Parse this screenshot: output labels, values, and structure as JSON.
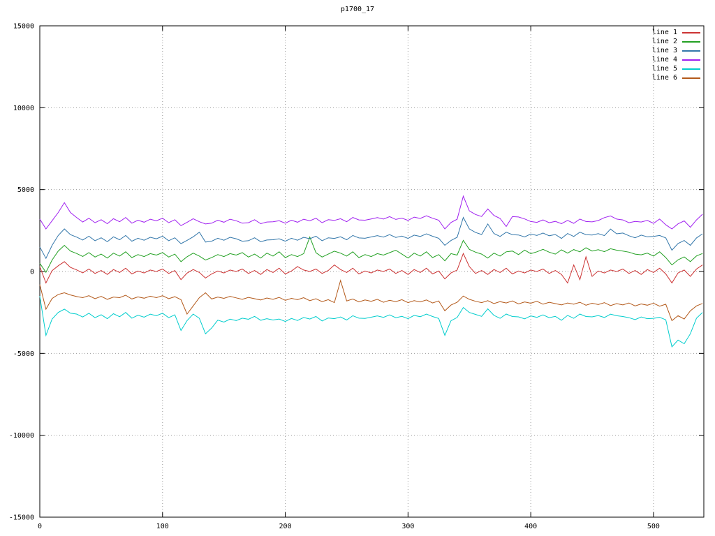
{
  "title": "p1700_17",
  "chart_data": {
    "type": "line",
    "title": "p1700_17",
    "xlabel": "",
    "ylabel": "",
    "xlim": [
      0,
      541
    ],
    "ylim": [
      -15000,
      15000
    ],
    "x_ticks": [
      0,
      100,
      200,
      300,
      400,
      500
    ],
    "y_ticks": [
      -15000,
      -10000,
      -5000,
      0,
      5000,
      10000,
      15000
    ],
    "grid": true,
    "legend_position": "top-right",
    "x_start": 0,
    "x_step": 5,
    "series": [
      {
        "name": "line 1",
        "color": "#cc3333",
        "values": [
          300,
          -700,
          50,
          350,
          600,
          250,
          100,
          -80,
          150,
          -120,
          60,
          -180,
          120,
          -60,
          200,
          -150,
          30,
          -90,
          90,
          0,
          150,
          -120,
          60,
          -500,
          -100,
          120,
          -60,
          -400,
          -150,
          30,
          -90,
          90,
          0,
          150,
          -120,
          60,
          -180,
          120,
          -60,
          200,
          -150,
          30,
          300,
          90,
          0,
          150,
          -120,
          60,
          400,
          120,
          -60,
          200,
          -150,
          30,
          -90,
          90,
          0,
          150,
          -120,
          60,
          -180,
          120,
          -60,
          200,
          -150,
          30,
          -450,
          -90,
          90,
          1100,
          300,
          -120,
          60,
          -180,
          120,
          -60,
          200,
          -150,
          30,
          -90,
          90,
          0,
          150,
          -120,
          60,
          -180,
          -700,
          400,
          -500,
          900,
          -300,
          30,
          -90,
          90,
          0,
          150,
          -120,
          60,
          -180,
          120,
          -60,
          200,
          -150,
          -700,
          -90,
          90,
          -300,
          150,
          400
        ]
      },
      {
        "name": "line 2",
        "color": "#22a022",
        "values": [
          500,
          -50,
          700,
          1250,
          1600,
          1250,
          1100,
          920,
          1150,
          880,
          1060,
          820,
          1120,
          940,
          1200,
          850,
          1030,
          910,
          1090,
          1000,
          1150,
          880,
          1060,
          600,
          900,
          1120,
          940,
          700,
          850,
          1030,
          910,
          1090,
          1000,
          1150,
          880,
          1060,
          820,
          1120,
          940,
          1200,
          850,
          1030,
          910,
          1090,
          2100,
          1150,
          880,
          1060,
          1240,
          1120,
          940,
          1200,
          850,
          1030,
          910,
          1090,
          1000,
          1150,
          1300,
          1060,
          820,
          1120,
          940,
          1200,
          850,
          1030,
          650,
          1090,
          1000,
          1900,
          1350,
          1180,
          1060,
          820,
          1120,
          940,
          1200,
          1250,
          1030,
          1310,
          1090,
          1200,
          1350,
          1180,
          1060,
          1320,
          1120,
          1340,
          1200,
          1450,
          1250,
          1330,
          1210,
          1390,
          1300,
          1250,
          1180,
          1060,
          1020,
          1120,
          940,
          1200,
          850,
          400,
          710,
          890,
          600,
          950,
          1100
        ]
      },
      {
        "name": "line 3",
        "color": "#3377aa",
        "values": [
          1500,
          800,
          1600,
          2200,
          2600,
          2250,
          2100,
          1920,
          2150,
          1880,
          2060,
          1820,
          2120,
          1940,
          2200,
          1850,
          2030,
          1910,
          2090,
          2000,
          2150,
          1880,
          2060,
          1700,
          1900,
          2120,
          2400,
          1800,
          1850,
          2030,
          1910,
          2090,
          2000,
          1850,
          1880,
          2060,
          1820,
          1920,
          1940,
          2000,
          1850,
          2030,
          1910,
          2090,
          2000,
          2150,
          1880,
          2060,
          2020,
          2120,
          1940,
          2200,
          2050,
          2030,
          2110,
          2190,
          2100,
          2250,
          2080,
          2160,
          2020,
          2220,
          2140,
          2300,
          2150,
          2030,
          1600,
          1890,
          2090,
          3300,
          2600,
          2380,
          2260,
          2900,
          2320,
          2140,
          2400,
          2250,
          2230,
          2110,
          2290,
          2200,
          2350,
          2180,
          2260,
          2020,
          2320,
          2140,
          2400,
          2250,
          2230,
          2310,
          2190,
          2590,
          2300,
          2350,
          2180,
          2060,
          2220,
          2120,
          2140,
          2200,
          2050,
          1300,
          1710,
          1890,
          1600,
          2050,
          2300
        ]
      },
      {
        "name": "line 4",
        "color": "#a020f0",
        "values": [
          3200,
          2600,
          3100,
          3600,
          4200,
          3600,
          3300,
          3020,
          3250,
          2980,
          3160,
          2920,
          3220,
          3040,
          3300,
          2950,
          3130,
          3010,
          3190,
          3100,
          3250,
          2980,
          3160,
          2800,
          3000,
          3220,
          3040,
          2900,
          2950,
          3130,
          3010,
          3190,
          3100,
          2950,
          2980,
          3160,
          2920,
          3020,
          3040,
          3100,
          2950,
          3130,
          3010,
          3190,
          3100,
          3250,
          2980,
          3160,
          3120,
          3220,
          3040,
          3300,
          3150,
          3130,
          3210,
          3290,
          3200,
          3350,
          3180,
          3260,
          3120,
          3320,
          3240,
          3400,
          3250,
          3130,
          2600,
          2990,
          3190,
          4600,
          3700,
          3480,
          3360,
          3820,
          3420,
          3240,
          2750,
          3350,
          3330,
          3210,
          3050,
          3000,
          3150,
          2980,
          3060,
          2920,
          3120,
          2940,
          3200,
          3050,
          3030,
          3110,
          3290,
          3390,
          3200,
          3150,
          2980,
          3060,
          3020,
          3120,
          2940,
          3200,
          2850,
          2600,
          2910,
          3090,
          2700,
          3150,
          3500
        ]
      },
      {
        "name": "line 5",
        "color": "#00cdcd",
        "values": [
          -1500,
          -3900,
          -2900,
          -2500,
          -2300,
          -2550,
          -2600,
          -2780,
          -2550,
          -2820,
          -2640,
          -2880,
          -2580,
          -2760,
          -2500,
          -2850,
          -2670,
          -2790,
          -2610,
          -2700,
          -2550,
          -2820,
          -2640,
          -3600,
          -3000,
          -2600,
          -2860,
          -3800,
          -3450,
          -2970,
          -3090,
          -2910,
          -3000,
          -2850,
          -2920,
          -2740,
          -2980,
          -2880,
          -2960,
          -2900,
          -3050,
          -2870,
          -2990,
          -2810,
          -2900,
          -2750,
          -3020,
          -2840,
          -2880,
          -2780,
          -2960,
          -2700,
          -2850,
          -2870,
          -2790,
          -2710,
          -2800,
          -2650,
          -2820,
          -2740,
          -2880,
          -2680,
          -2760,
          -2600,
          -2750,
          -2870,
          -3900,
          -3010,
          -2810,
          -2200,
          -2500,
          -2620,
          -2740,
          -2280,
          -2680,
          -2860,
          -2600,
          -2750,
          -2770,
          -2890,
          -2710,
          -2800,
          -2650,
          -2820,
          -2740,
          -2980,
          -2680,
          -2860,
          -2600,
          -2750,
          -2770,
          -2690,
          -2810,
          -2610,
          -2700,
          -2750,
          -2820,
          -2940,
          -2780,
          -2880,
          -2860,
          -2800,
          -2950,
          -4600,
          -4190,
          -4410,
          -3800,
          -2850,
          -2500
        ]
      },
      {
        "name": "line 6",
        "color": "#b3591a",
        "values": [
          -800,
          -2300,
          -1650,
          -1400,
          -1300,
          -1430,
          -1530,
          -1600,
          -1480,
          -1660,
          -1520,
          -1700,
          -1560,
          -1600,
          -1450,
          -1680,
          -1550,
          -1630,
          -1510,
          -1600,
          -1480,
          -1660,
          -1540,
          -1720,
          -2600,
          -2100,
          -1600,
          -1300,
          -1680,
          -1560,
          -1640,
          -1520,
          -1610,
          -1700,
          -1580,
          -1660,
          -1740,
          -1620,
          -1700,
          -1580,
          -1760,
          -1640,
          -1720,
          -1600,
          -1780,
          -1660,
          -1840,
          -1720,
          -1900,
          -550,
          -1800,
          -1680,
          -1860,
          -1740,
          -1820,
          -1700,
          -1880,
          -1760,
          -1840,
          -1720,
          -1900,
          -1780,
          -1860,
          -1740,
          -1920,
          -1800,
          -2400,
          -2050,
          -1880,
          -1500,
          -1700,
          -1820,
          -1900,
          -1780,
          -1960,
          -1840,
          -1920,
          -1800,
          -1980,
          -1860,
          -1940,
          -1820,
          -2000,
          -1880,
          -1960,
          -2040,
          -1920,
          -2000,
          -1880,
          -2060,
          -1940,
          -2020,
          -1900,
          -2080,
          -1960,
          -2040,
          -1920,
          -2100,
          -1980,
          -2060,
          -1940,
          -2120,
          -2000,
          -3000,
          -2700,
          -2900,
          -2400,
          -2100,
          -1950
        ]
      }
    ]
  }
}
